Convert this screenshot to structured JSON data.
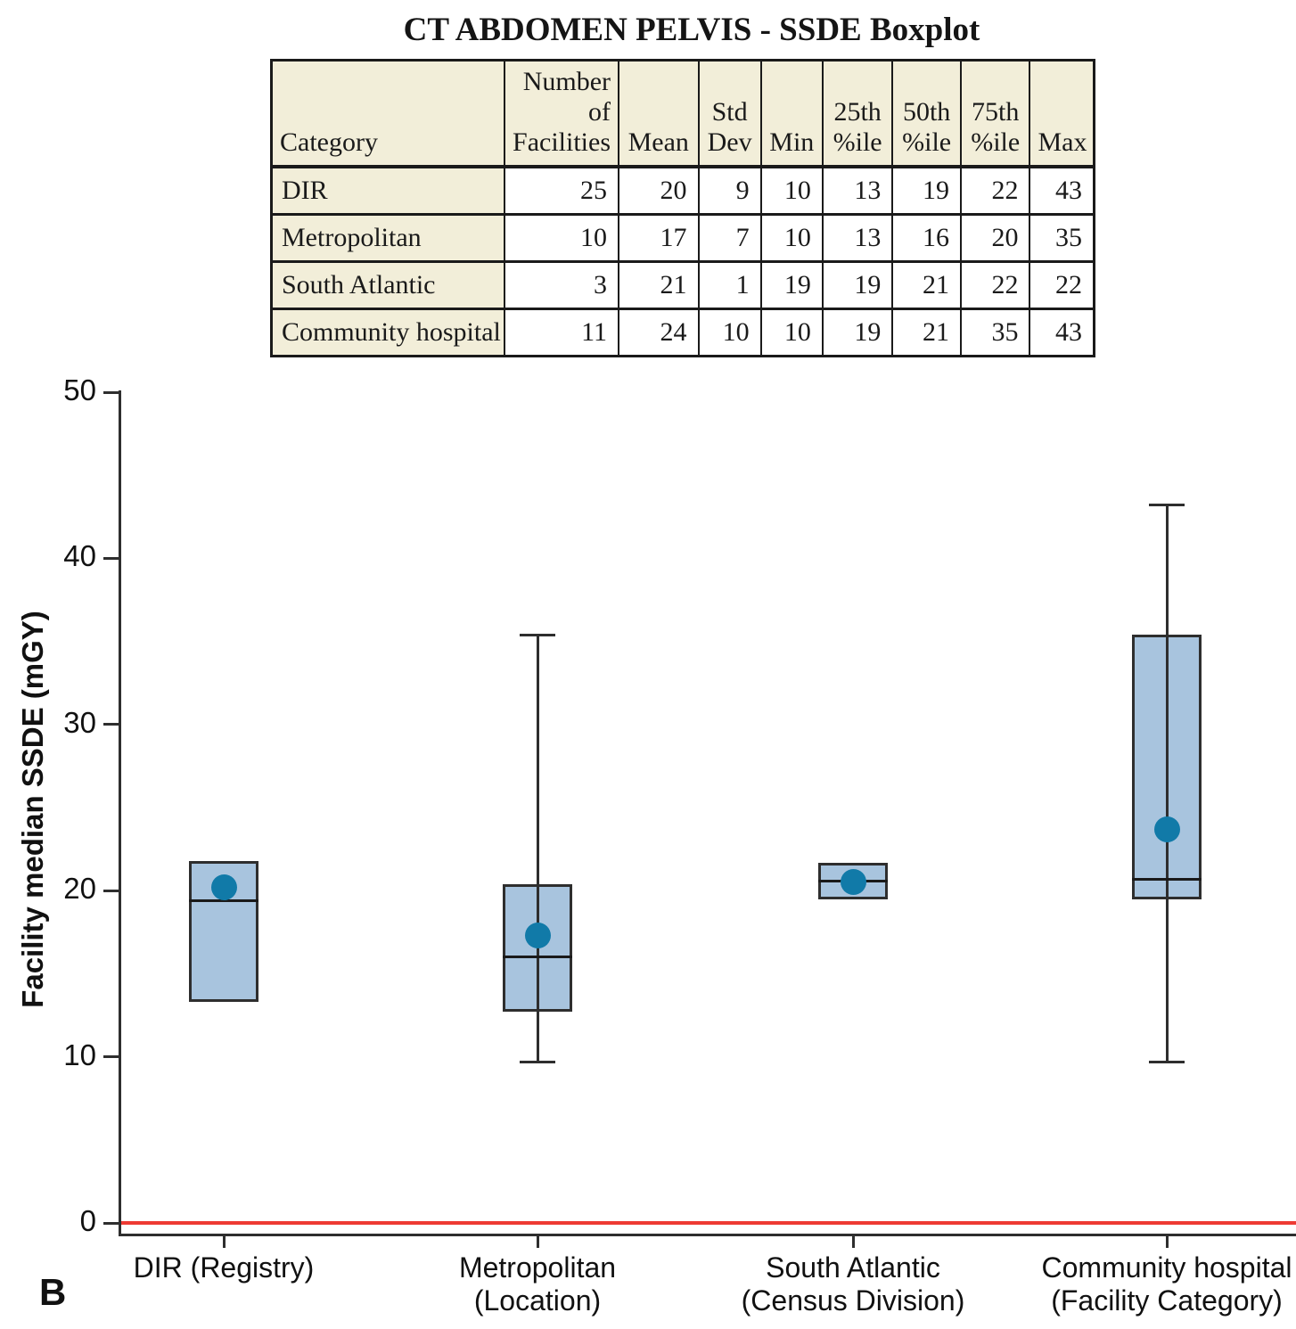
{
  "page": {
    "panel_label": "B"
  },
  "chart_data": {
    "type": "boxplot",
    "title": "CT ABDOMEN PELVIS - SSDE Boxplot",
    "ylabel": "Facility median SSDE (mGY)",
    "ylim": [
      0,
      50
    ],
    "yticks": [
      0,
      10,
      20,
      30,
      40,
      50
    ],
    "grid": false,
    "zero_reference_line": {
      "y": 0,
      "color": "#ee3a33"
    },
    "categories": [
      "DIR (Registry)",
      "Metropolitan (Location)",
      "South Atlantic (Census Division)",
      "Community hospital (Facility Category)"
    ],
    "category_label_lines": [
      [
        "DIR (Registry)"
      ],
      [
        "Metropolitan",
        "(Location)"
      ],
      [
        "South Atlantic",
        "(Census Division)"
      ],
      [
        "Community hospital",
        "(Facility Category)"
      ]
    ],
    "series": [
      {
        "name": "DIR",
        "mean": 20.2,
        "median": 19.4,
        "q1": 13.3,
        "q3": 21.8,
        "whisker_low": null,
        "whisker_high": null
      },
      {
        "name": "Metropolitan",
        "mean": 17.3,
        "median": 16.0,
        "q1": 12.7,
        "q3": 20.4,
        "whisker_low": 9.7,
        "whisker_high": 35.4
      },
      {
        "name": "South Atlantic",
        "mean": 20.5,
        "median": 20.6,
        "q1": 19.5,
        "q3": 21.7,
        "whisker_low": null,
        "whisker_high": null
      },
      {
        "name": "Community hospital",
        "mean": 23.7,
        "median": 20.7,
        "q1": 19.5,
        "q3": 35.4,
        "whisker_low": 9.7,
        "whisker_high": 43.2
      }
    ],
    "colors": {
      "box_fill": "#a8c4de",
      "box_border": "#2e2e2e",
      "median_line": "#1a1a1a",
      "mean_dot": "#117aa8",
      "axis": "#2e2e2e",
      "zero_line": "#ee3a33"
    }
  },
  "table": {
    "headers": [
      "Category",
      "Number\nof\nFacilities",
      "Mean",
      "Std\nDev",
      "Min",
      "25th\n%ile",
      "50th\n%ile",
      "75th\n%ile",
      "Max"
    ],
    "rows": [
      {
        "category": "DIR",
        "values": [
          25,
          20,
          9,
          10,
          13,
          19,
          22,
          43
        ]
      },
      {
        "category": "Metropolitan",
        "values": [
          10,
          17,
          7,
          10,
          13,
          16,
          20,
          35
        ]
      },
      {
        "category": "South Atlantic",
        "values": [
          3,
          21,
          1,
          19,
          19,
          21,
          22,
          22
        ]
      },
      {
        "category": "Community hospital",
        "values": [
          11,
          24,
          10,
          10,
          19,
          21,
          35,
          43
        ]
      }
    ]
  }
}
